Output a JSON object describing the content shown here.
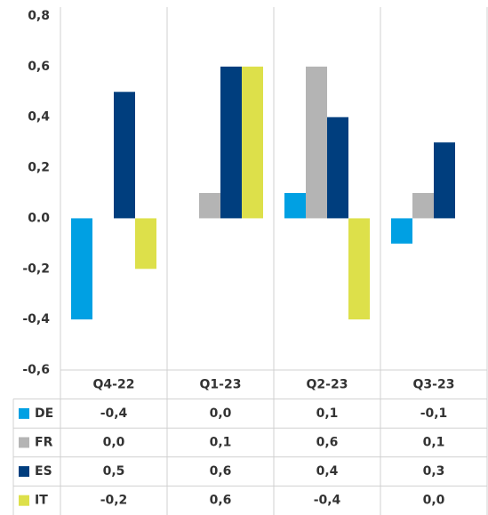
{
  "chart_data": {
    "type": "bar",
    "categories": [
      "Q4-22",
      "Q1-23",
      "Q2-23",
      "Q3-23"
    ],
    "series": [
      {
        "name": "DE",
        "color": "#00a0e3",
        "values": [
          -0.4,
          0.0,
          0.1,
          -0.1
        ],
        "value_labels": [
          "-0,4",
          "0,0",
          "0,1",
          "-0,1"
        ]
      },
      {
        "name": "FR",
        "color": "#b4b4b4",
        "values": [
          0.0,
          0.1,
          0.6,
          0.1
        ],
        "value_labels": [
          "0,0",
          "0,1",
          "0,6",
          "0,1"
        ]
      },
      {
        "name": "ES",
        "color": "#003e7e",
        "values": [
          0.5,
          0.6,
          0.4,
          0.3
        ],
        "value_labels": [
          "0,5",
          "0,6",
          "0,4",
          "0,3"
        ]
      },
      {
        "name": "IT",
        "color": "#dde04a",
        "values": [
          -0.2,
          0.6,
          -0.4,
          0.0
        ],
        "value_labels": [
          "-0,2",
          "0,6",
          "-0,4",
          "0,0"
        ]
      }
    ],
    "ylim": [
      -0.6,
      0.8
    ],
    "yticks": [
      {
        "value": 0.8,
        "label": "0,8"
      },
      {
        "value": 0.6,
        "label": "0,6"
      },
      {
        "value": 0.4,
        "label": "0,4"
      },
      {
        "value": 0.2,
        "label": "0,2"
      },
      {
        "value": 0.0,
        "label": "0.0"
      },
      {
        "value": -0.2,
        "label": "-0,2"
      },
      {
        "value": -0.4,
        "label": "-0,4"
      },
      {
        "value": -0.6,
        "label": "-0,6"
      }
    ]
  }
}
